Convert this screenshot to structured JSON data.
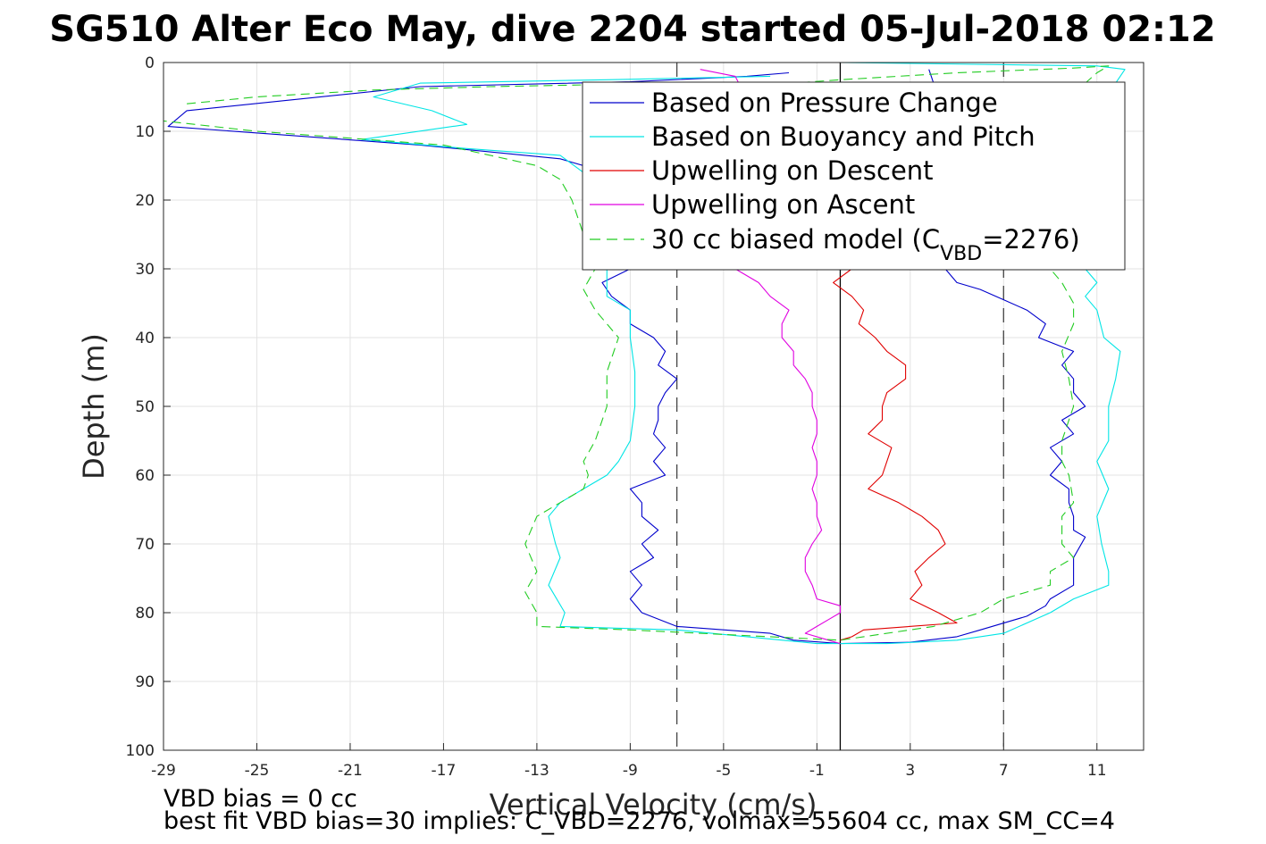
{
  "chart_data": {
    "type": "line",
    "title": "SG510 Alter Eco May, dive 2204 started 05-Jul-2018 02:12",
    "xlabel": "Vertical Velocity (cm/s)",
    "ylabel": "Depth (m)",
    "xlim": [
      -29,
      13
    ],
    "ylim": [
      0,
      100
    ],
    "y_reversed": true,
    "grid": true,
    "xticks": [
      -29,
      -25,
      -21,
      -17,
      -13,
      -9,
      -5,
      -1,
      3,
      7,
      11
    ],
    "yticks": [
      0,
      10,
      20,
      30,
      40,
      50,
      60,
      70,
      80,
      90,
      100
    ],
    "legend_position": "top-right",
    "legend": [
      {
        "label": "Based on Pressure Change",
        "color": "#0000cc",
        "dash": "solid"
      },
      {
        "label": "Based on Buoyancy and Pitch",
        "color": "#00e5e5",
        "dash": "solid"
      },
      {
        "label": "Upwelling on Descent",
        "color": "#e00000",
        "dash": "solid"
      },
      {
        "label": "Upwelling on Ascent",
        "color": "#e000e0",
        "dash": "solid"
      },
      {
        "label": "30 cc biased model (C",
        "label_sub": "VBD",
        "label_post": "=2276)",
        "color": "#22cc22",
        "dash": "dashed"
      }
    ],
    "reference_lines": [
      {
        "x": -7,
        "style": "dashed",
        "color": "#444444"
      },
      {
        "x": 0,
        "style": "solid",
        "color": "#000000"
      },
      {
        "x": 7,
        "style": "dashed",
        "color": "#444444"
      }
    ],
    "series": [
      {
        "name": "Based on Pressure Change",
        "color": "#0000cc",
        "dash": "solid",
        "points": [
          [
            -2.2,
            1.5
          ],
          [
            -4,
            2
          ],
          [
            -9,
            2.8
          ],
          [
            -18,
            3.5
          ],
          [
            -28,
            7
          ],
          [
            -28.8,
            9.3
          ],
          [
            -24,
            10.5
          ],
          [
            -18,
            12
          ],
          [
            -12,
            14
          ],
          [
            -10,
            16
          ],
          [
            -9.5,
            20
          ],
          [
            -9.5,
            25
          ],
          [
            -9,
            30
          ],
          [
            -10.2,
            32
          ],
          [
            -9.8,
            34
          ],
          [
            -9,
            36
          ],
          [
            -9,
            38
          ],
          [
            -8,
            40
          ],
          [
            -7.5,
            42
          ],
          [
            -7.8,
            44
          ],
          [
            -7,
            46
          ],
          [
            -7.5,
            48
          ],
          [
            -7.8,
            50
          ],
          [
            -7.8,
            52
          ],
          [
            -8,
            54
          ],
          [
            -7.5,
            56
          ],
          [
            -8,
            58
          ],
          [
            -7.5,
            60
          ],
          [
            -9,
            62
          ],
          [
            -8.5,
            64
          ],
          [
            -8.5,
            66
          ],
          [
            -7.8,
            68
          ],
          [
            -8.5,
            70
          ],
          [
            -8,
            72
          ],
          [
            -9,
            74
          ],
          [
            -8.5,
            76
          ],
          [
            -9,
            78
          ],
          [
            -8.5,
            80
          ],
          [
            -7,
            82
          ],
          [
            -3,
            83
          ],
          [
            -2,
            84
          ],
          [
            0,
            84.5
          ],
          [
            3,
            84.3
          ],
          [
            5,
            83.5
          ],
          [
            6,
            82.5
          ],
          [
            8,
            80.5
          ],
          [
            8.8,
            79
          ],
          [
            9,
            78
          ],
          [
            10,
            76
          ],
          [
            10,
            74
          ],
          [
            10,
            72
          ],
          [
            10.5,
            69
          ],
          [
            10,
            68
          ],
          [
            10,
            66
          ],
          [
            9.8,
            64
          ],
          [
            9.8,
            62
          ],
          [
            9,
            60
          ],
          [
            9.5,
            58
          ],
          [
            9,
            56
          ],
          [
            10,
            54
          ],
          [
            9.5,
            52
          ],
          [
            10.5,
            50
          ],
          [
            10,
            48
          ],
          [
            10,
            46
          ],
          [
            9.5,
            44
          ],
          [
            10,
            42
          ],
          [
            8.5,
            40
          ],
          [
            8.8,
            38
          ],
          [
            8,
            36
          ],
          [
            7,
            34.5
          ],
          [
            6,
            33
          ],
          [
            5,
            32
          ],
          [
            4.5,
            30
          ],
          [
            5,
            25
          ],
          [
            5,
            20
          ],
          [
            4,
            15
          ],
          [
            4,
            10
          ],
          [
            4,
            5
          ],
          [
            4,
            3
          ],
          [
            3.8,
            1
          ]
        ]
      },
      {
        "name": "Based on Buoyancy and Pitch",
        "color": "#00e5e5",
        "dash": "solid",
        "points": [
          [
            -3,
            2
          ],
          [
            -10,
            2.5
          ],
          [
            -18,
            3
          ],
          [
            -20,
            5
          ],
          [
            -17.5,
            7
          ],
          [
            -16,
            9
          ],
          [
            -20.5,
            11.2
          ],
          [
            -16,
            12.5
          ],
          [
            -12,
            13.5
          ],
          [
            -11,
            16
          ],
          [
            -10.5,
            20
          ],
          [
            -10.5,
            25
          ],
          [
            -10,
            30
          ],
          [
            -10,
            34
          ],
          [
            -9,
            36
          ],
          [
            -9,
            40
          ],
          [
            -8.8,
            45
          ],
          [
            -8.8,
            50
          ],
          [
            -9,
            55
          ],
          [
            -9.5,
            58
          ],
          [
            -10,
            60
          ],
          [
            -11,
            62
          ],
          [
            -12,
            64
          ],
          [
            -12.5,
            66
          ],
          [
            -12.2,
            70
          ],
          [
            -12,
            72
          ],
          [
            -12.5,
            76
          ],
          [
            -11.8,
            80
          ],
          [
            -12,
            82
          ],
          [
            -7,
            82.5
          ],
          [
            -4,
            83.5
          ],
          [
            -1,
            84.5
          ],
          [
            2,
            84.5
          ],
          [
            5,
            84
          ],
          [
            7,
            83
          ],
          [
            9,
            80
          ],
          [
            10,
            78
          ],
          [
            11.5,
            76
          ],
          [
            11.5,
            74
          ],
          [
            11.2,
            70
          ],
          [
            11,
            66
          ],
          [
            11.5,
            62
          ],
          [
            11,
            58
          ],
          [
            11.5,
            55
          ],
          [
            11.5,
            50
          ],
          [
            11.8,
            46
          ],
          [
            12,
            42
          ],
          [
            11.3,
            40
          ],
          [
            11,
            36
          ],
          [
            10.5,
            34
          ],
          [
            11,
            32
          ],
          [
            10.5,
            30
          ],
          [
            10,
            25
          ],
          [
            10,
            20
          ],
          [
            10,
            15
          ],
          [
            10,
            10
          ],
          [
            11,
            5
          ],
          [
            11.8,
            3
          ],
          [
            12.2,
            1
          ],
          [
            11,
            0.5
          ],
          [
            0,
            0
          ]
        ]
      },
      {
        "name": "Upwelling on Descent",
        "color": "#e00000",
        "dash": "solid",
        "points": [
          [
            -11,
            9
          ],
          [
            -10,
            9.5
          ],
          [
            -6,
            10
          ],
          [
            -3,
            11
          ],
          [
            -1,
            12
          ],
          [
            0,
            14
          ],
          [
            0,
            20
          ],
          [
            0,
            25
          ],
          [
            0.5,
            30
          ],
          [
            -0.3,
            32
          ],
          [
            0.5,
            34
          ],
          [
            1,
            36
          ],
          [
            0.8,
            38
          ],
          [
            1.5,
            40
          ],
          [
            2,
            42
          ],
          [
            2.8,
            44
          ],
          [
            2.8,
            46
          ],
          [
            2,
            48
          ],
          [
            1.8,
            50
          ],
          [
            1.8,
            52
          ],
          [
            1.2,
            54
          ],
          [
            2.2,
            56
          ],
          [
            2,
            58
          ],
          [
            1.8,
            60
          ],
          [
            1.2,
            62
          ],
          [
            2.5,
            64
          ],
          [
            3.5,
            66
          ],
          [
            4.2,
            68
          ],
          [
            4.5,
            70
          ],
          [
            3.8,
            72
          ],
          [
            3.2,
            74
          ],
          [
            3.5,
            76
          ],
          [
            3,
            78
          ],
          [
            4.2,
            80
          ],
          [
            5,
            81.5
          ],
          [
            1,
            82.5
          ],
          [
            0.5,
            83.5
          ],
          [
            0,
            84
          ]
        ]
      },
      {
        "name": "Upwelling on Ascent",
        "color": "#e000e0",
        "dash": "solid",
        "points": [
          [
            -6,
            1
          ],
          [
            -4.5,
            2
          ],
          [
            -4.2,
            4
          ],
          [
            -4.5,
            6
          ],
          [
            -5,
            8
          ],
          [
            -5,
            10
          ],
          [
            -5.2,
            15
          ],
          [
            -5.5,
            20
          ],
          [
            -5.5,
            25
          ],
          [
            -4.5,
            30
          ],
          [
            -3.5,
            32
          ],
          [
            -3,
            34
          ],
          [
            -2.2,
            36
          ],
          [
            -2.5,
            38
          ],
          [
            -2.5,
            40
          ],
          [
            -2,
            42
          ],
          [
            -2,
            44
          ],
          [
            -1.5,
            46
          ],
          [
            -1.2,
            48
          ],
          [
            -1.2,
            50
          ],
          [
            -1,
            52
          ],
          [
            -1,
            54
          ],
          [
            -1.2,
            56
          ],
          [
            -1,
            58
          ],
          [
            -1,
            60
          ],
          [
            -1.2,
            62
          ],
          [
            -1,
            64
          ],
          [
            -1,
            66
          ],
          [
            -0.8,
            68
          ],
          [
            -1.2,
            70
          ],
          [
            -1.5,
            72
          ],
          [
            -1.5,
            74
          ],
          [
            -1.2,
            76
          ],
          [
            -1,
            78
          ],
          [
            0,
            79
          ],
          [
            0,
            80
          ],
          [
            -0.5,
            81
          ],
          [
            -1,
            82
          ],
          [
            -1.5,
            83
          ],
          [
            -0.5,
            84
          ],
          [
            0,
            84.5
          ]
        ]
      },
      {
        "name": "30 cc biased model (CVBD=2276)",
        "color": "#22cc22",
        "dash": "dashed",
        "points": [
          [
            -28,
            6
          ],
          [
            -25,
            5
          ],
          [
            -20,
            4
          ],
          [
            -15,
            3.5
          ],
          [
            -10,
            3.2
          ],
          [
            -5,
            3
          ],
          [
            -2,
            3
          ],
          [
            0,
            2.5
          ],
          [
            5,
            1.5
          ],
          [
            10,
            0.8
          ],
          [
            11.5,
            0.5
          ],
          [
            11,
            1.5
          ],
          [
            10.5,
            3
          ],
          [
            10,
            5
          ],
          [
            10.5,
            10
          ],
          [
            10,
            15
          ],
          [
            9,
            20
          ],
          [
            8.8,
            25
          ],
          [
            9,
            30
          ],
          [
            9.5,
            32
          ],
          [
            10,
            35
          ],
          [
            10,
            38
          ],
          [
            9.5,
            42
          ],
          [
            9.8,
            46
          ],
          [
            10,
            50
          ],
          [
            9.5,
            55
          ],
          [
            9.5,
            58
          ],
          [
            9.8,
            60
          ],
          [
            10,
            64
          ],
          [
            9.5,
            66
          ],
          [
            9.5,
            70
          ],
          [
            10,
            72
          ],
          [
            9,
            74
          ],
          [
            9,
            76
          ],
          [
            7,
            78
          ],
          [
            6,
            80
          ],
          [
            4,
            82
          ],
          [
            0,
            84
          ],
          [
            -6,
            83
          ],
          [
            -9,
            82.5
          ],
          [
            -13,
            82
          ],
          [
            -13,
            80
          ],
          [
            -13.5,
            77
          ],
          [
            -13,
            74
          ],
          [
            -13.5,
            70
          ],
          [
            -13,
            66
          ],
          [
            -12,
            64
          ],
          [
            -11,
            62
          ],
          [
            -10.8,
            60
          ],
          [
            -11,
            58
          ],
          [
            -10.5,
            55
          ],
          [
            -10,
            50
          ],
          [
            -10,
            45
          ],
          [
            -9.5,
            40
          ],
          [
            -10.5,
            36
          ],
          [
            -11,
            33
          ],
          [
            -10.5,
            30
          ],
          [
            -11,
            25
          ],
          [
            -11.5,
            20
          ],
          [
            -12,
            17
          ],
          [
            -13,
            15
          ],
          [
            -17,
            12
          ],
          [
            -25,
            10
          ],
          [
            -29,
            8.5
          ]
        ]
      }
    ],
    "annotations": [
      "VBD bias = 0 cc",
      "best fit VBD bias=30 implies: C_VBD=2276, volmax=55604 cc, max SM_CC=4"
    ]
  }
}
